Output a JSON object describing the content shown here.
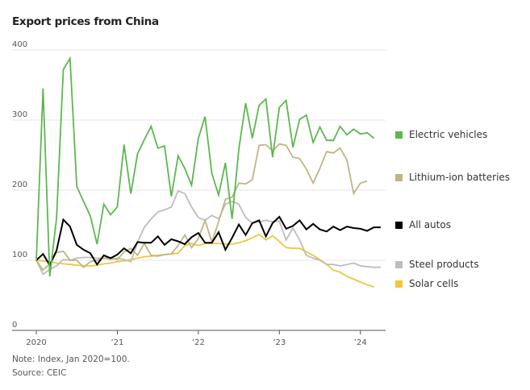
{
  "chart_data": {
    "type": "line",
    "title": "Export prices from China",
    "xlabel": "",
    "ylabel": "",
    "ylim": [
      0,
      400
    ],
    "yticks": [
      0,
      100,
      200,
      300,
      400
    ],
    "ytick_labels": [
      "0",
      "100",
      "200",
      "300",
      "400"
    ],
    "x_start": "2020-01",
    "x_end_axis": "2024-05",
    "x_interval": "monthly",
    "xticks": [
      "2020-01",
      "2021-01",
      "2022-01",
      "2023-01",
      "2024-01"
    ],
    "xtick_labels": [
      "2020",
      "’21",
      "’22",
      "’23",
      "’24"
    ],
    "grid": "horizontal",
    "legend_position": "right",
    "series": [
      {
        "name": "Electric vehicles",
        "color": "#5cb84f",
        "start": "2020-01",
        "values": [
          100,
          345,
          77,
          160,
          372,
          388,
          205,
          184,
          163,
          123,
          180,
          165,
          176,
          265,
          195,
          252,
          272,
          291,
          260,
          263,
          191,
          249,
          231,
          207,
          274,
          305,
          224,
          193,
          239,
          159,
          259,
          324,
          274,
          321,
          330,
          247,
          318,
          328,
          261,
          301,
          307,
          268,
          290,
          271,
          271,
          291,
          279,
          287,
          280,
          282,
          274
        ]
      },
      {
        "name": "Lithium-ion batteries",
        "color": "#bfb583",
        "start": "2020-01",
        "values": [
          100,
          86,
          95,
          111,
          113,
          100,
          100,
          90,
          98,
          100,
          103,
          104,
          101,
          112,
          117,
          107,
          124,
          107,
          106,
          108,
          109,
          121,
          136,
          118,
          131,
          157,
          126,
          155,
          187,
          190,
          210,
          209,
          215,
          264,
          265,
          256,
          266,
          264,
          247,
          245,
          230,
          210,
          231,
          255,
          253,
          260,
          243,
          195,
          210,
          213
        ]
      },
      {
        "name": "All autos",
        "color": "#000000",
        "start": "2020-01",
        "values": [
          100,
          109,
          93,
          114,
          158,
          148,
          122,
          115,
          110,
          94,
          107,
          103,
          108,
          117,
          110,
          126,
          125,
          125,
          134,
          122,
          130,
          127,
          123,
          133,
          139,
          125,
          125,
          140,
          115,
          132,
          151,
          136,
          153,
          157,
          134,
          153,
          162,
          145,
          149,
          157,
          144,
          152,
          144,
          141,
          148,
          143,
          148,
          146,
          145,
          142,
          147,
          147
        ]
      },
      {
        "name": "Steel products",
        "color": "#bdbdbd",
        "start": "2020-01",
        "values": [
          100,
          80,
          87,
          92,
          101,
          100,
          103,
          104,
          104,
          103,
          103,
          101,
          103,
          101,
          98,
          126,
          147,
          159,
          169,
          172,
          176,
          199,
          195,
          176,
          161,
          157,
          164,
          159,
          180,
          184,
          180,
          161,
          153,
          155,
          157,
          155,
          156,
          129,
          146,
          129,
          107,
          103,
          100,
          94,
          94,
          92,
          94,
          96,
          92,
          91,
          90,
          90
        ]
      },
      {
        "name": "Solar cells",
        "color": "#f0c63a",
        "start": "2020-01",
        "values": [
          100,
          99,
          98,
          96,
          95,
          94,
          93,
          92,
          92,
          93,
          95,
          96,
          98,
          99,
          101,
          103,
          105,
          106,
          107,
          108,
          109,
          110,
          121,
          124,
          121,
          124,
          124,
          124,
          123,
          123,
          125,
          128,
          132,
          137,
          129,
          135,
          127,
          118,
          117,
          117,
          112,
          107,
          101,
          94,
          86,
          83,
          77,
          73,
          69,
          65,
          62
        ]
      }
    ]
  },
  "notes": {
    "note": "Note: Index, Jan 2020=100.",
    "source": "Source: CEIC"
  }
}
